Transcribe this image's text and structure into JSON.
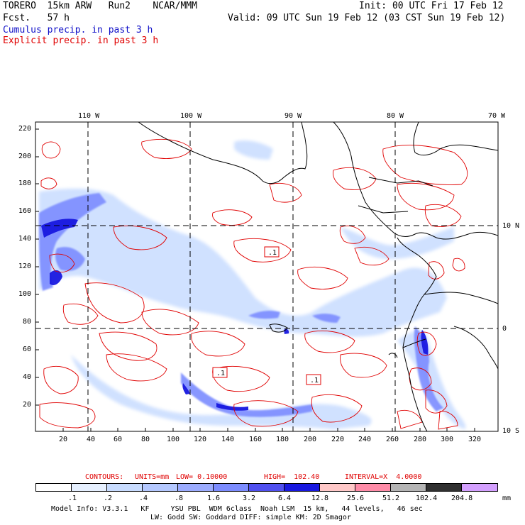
{
  "header": {
    "model_line": "TORERO  15km ARW   Run2    NCAR/MMM",
    "fcst_line": "Fcst.   57 h",
    "init_line": "Init: 00 UTC Fri 17 Feb 12",
    "valid_line": "Valid: 09 UTC Sun 19 Feb 12 (03 CST Sun 19 Feb 12)",
    "cumulus_label": "Cumulus precip. in past 3 h",
    "explicit_label": "Explicit precip. in past 3 h"
  },
  "map": {
    "lon_labels": [
      "110 W",
      "100 W",
      "90 W",
      "80 W",
      "70 W"
    ],
    "lat_labels": [
      "10 N",
      "0",
      "10 S"
    ],
    "y_ticks": [
      "220",
      "200",
      "180",
      "160",
      "140",
      "120",
      "100",
      "80",
      "60",
      "40",
      "20"
    ],
    "x_ticks": [
      "20",
      "40",
      "60",
      "80",
      "100",
      "120",
      "140",
      "160",
      "180",
      "200",
      "220",
      "240",
      "260",
      "280",
      "300",
      "320"
    ],
    "contour_box_labels": [
      ".1",
      ".1",
      ".1"
    ],
    "colors": {
      "land_line": "#000000",
      "contour": "#e00000",
      "precip_light": "#c8dcff",
      "precip_mid": "#7c8cff",
      "precip_heavy": "#1818e0"
    }
  },
  "contour_info": {
    "title": "CONTOURS:",
    "units": "UNITS=mm",
    "low": "LOW= 0.10000",
    "high": "HIGH=  102.40",
    "interval": "INTERVAL=X  4.0000"
  },
  "colorbar": {
    "labels": [
      ".1",
      ".2",
      ".4",
      ".8",
      "1.6",
      "3.2",
      "6.4",
      "12.8",
      "25.6",
      "51.2",
      "102.4",
      "204.8"
    ],
    "units": "mm",
    "colors": [
      "#ffffff",
      "#e6f0ff",
      "#c8dcff",
      "#b4c8ff",
      "#9cacff",
      "#7c8cff",
      "#5050f0",
      "#1818e0",
      "#ffc8c8",
      "#ff8ca8",
      "#b4b4b4",
      "#303030",
      "#d4a0ff"
    ]
  },
  "footer": {
    "line1": "Model Info: V3.3.1   KF     YSU PBL  WDM 6class  Noah LSM  15 km,   44 levels,   46 sec",
    "line2": "LW: Godd SW: Goddard DIFF: simple KM: 2D Smagor"
  }
}
